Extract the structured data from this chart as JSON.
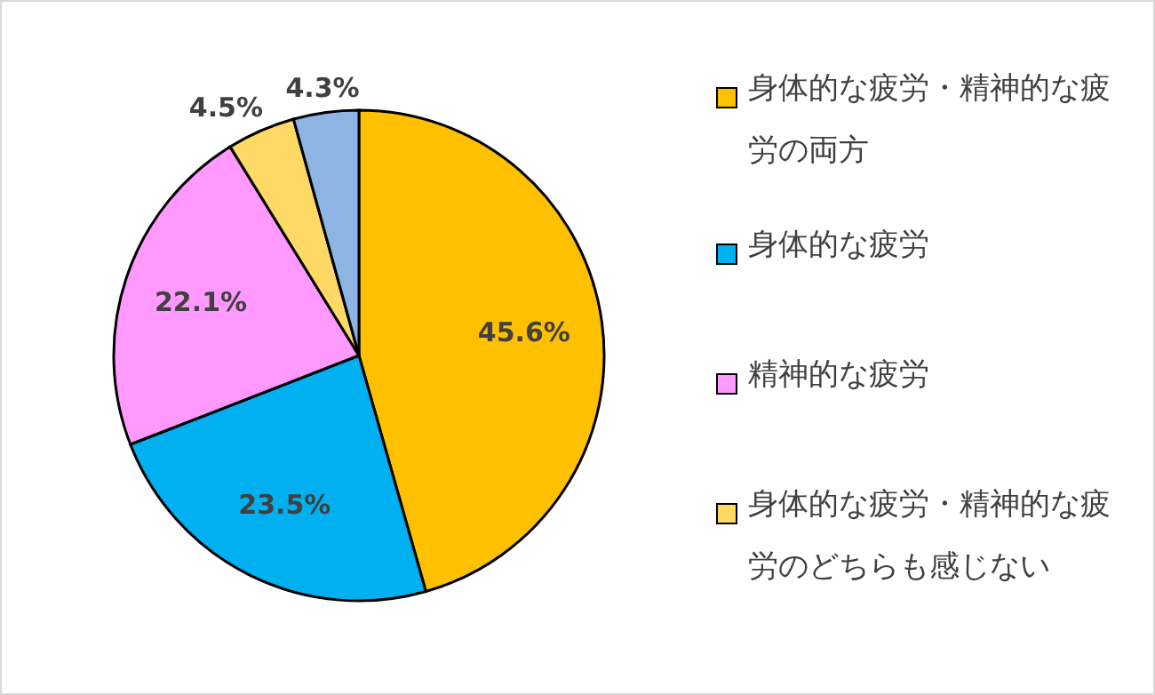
{
  "chart_data": {
    "type": "pie",
    "categories": [
      "身体的な疲労・精神的な疲労の両方",
      "身体的な疲労",
      "精神的な疲労",
      "身体的な疲労・精神的な疲労のどちらも感じない",
      null
    ],
    "values": [
      45.6,
      23.5,
      22.1,
      4.5,
      4.3
    ],
    "value_labels": [
      "45.6%",
      "23.5%",
      "22.1%",
      "4.5%",
      "4.3%"
    ],
    "colors": [
      "#ffc000",
      "#00b0f0",
      "#ff99ff",
      "#ffd966",
      "#8db4e2"
    ],
    "legend": "right"
  }
}
